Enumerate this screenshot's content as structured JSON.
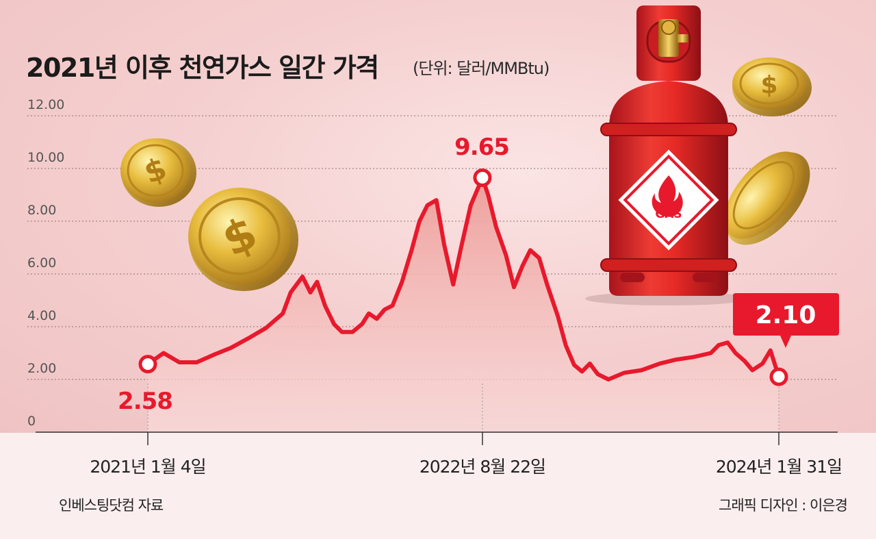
{
  "title": "2021년 이후 천연가스 일간 가격",
  "unit": "(단위: 달러/MMBtu)",
  "source": "인베스팅닷컴 자료",
  "credit": "그래픽 디자인 : 이은경",
  "illustration": {
    "cylinder_label": "GAS",
    "icons": [
      "gas-cylinder-icon",
      "gold-dollar-coin-icon"
    ]
  },
  "colors": {
    "line": "#e8192c",
    "label": "#e8192c",
    "area_top": "#ee9c98",
    "area_bottom": "#f8dcdb",
    "badge": "#e8192c"
  },
  "chart_data": {
    "type": "line",
    "title": "2021년 이후 천연가스 일간 가격",
    "ylabel": "",
    "xlabel": "",
    "ylim": [
      0,
      12
    ],
    "yticks": [
      "0",
      "2.00",
      "4.00",
      "6.00",
      "8.00",
      "10.00",
      "12.00"
    ],
    "grid": true,
    "x_labels": [
      {
        "date": "2021-01-04",
        "label": "2021년 1월 4일"
      },
      {
        "date": "2022-08-22",
        "label": "2022년 8월 22일"
      },
      {
        "date": "2024-01-31",
        "label": "2024년 1월 31일"
      }
    ],
    "annotations": [
      {
        "date": "2021-01-04",
        "value": 2.58,
        "label": "2.58"
      },
      {
        "date": "2022-08-22",
        "value": 9.65,
        "label": "9.65"
      },
      {
        "date": "2024-01-31",
        "value": 2.1,
        "label": "2.10"
      }
    ],
    "series": [
      {
        "dates": [
          "2021-01-04",
          "2021-02-01",
          "2021-03-01",
          "2021-04-01",
          "2021-05-03",
          "2021-06-01",
          "2021-07-01",
          "2021-08-02",
          "2021-09-01",
          "2021-09-15",
          "2021-10-06",
          "2021-10-20",
          "2021-11-01",
          "2021-11-15",
          "2021-12-01",
          "2021-12-15",
          "2022-01-03",
          "2022-01-20",
          "2022-02-01",
          "2022-02-15",
          "2022-03-01",
          "2022-03-15",
          "2022-04-01",
          "2022-04-18",
          "2022-05-02",
          "2022-05-16",
          "2022-06-01",
          "2022-06-15",
          "2022-07-01",
          "2022-07-15",
          "2022-08-01",
          "2022-08-22",
          "2022-09-01",
          "2022-09-15",
          "2022-10-03",
          "2022-10-17",
          "2022-11-01",
          "2022-11-15",
          "2022-12-01",
          "2022-12-15",
          "2023-01-03",
          "2023-01-17",
          "2023-02-01",
          "2023-02-15",
          "2023-03-01",
          "2023-03-15",
          "2023-04-03",
          "2023-05-01",
          "2023-06-01",
          "2023-07-03",
          "2023-08-01",
          "2023-09-01",
          "2023-10-02",
          "2023-10-16",
          "2023-11-01",
          "2023-11-15",
          "2023-12-01",
          "2023-12-15",
          "2024-01-02",
          "2024-01-16",
          "2024-01-31"
        ],
        "values": [
          2.58,
          3.0,
          2.65,
          2.65,
          2.95,
          3.2,
          3.55,
          3.95,
          4.5,
          5.3,
          5.9,
          5.3,
          5.7,
          4.8,
          4.1,
          3.8,
          3.8,
          4.1,
          4.5,
          4.3,
          4.65,
          4.8,
          5.7,
          6.9,
          8.0,
          8.6,
          8.8,
          7.1,
          5.6,
          7.0,
          8.6,
          9.65,
          9.0,
          7.8,
          6.7,
          5.5,
          6.3,
          6.9,
          6.6,
          5.6,
          4.4,
          3.3,
          2.55,
          2.3,
          2.6,
          2.2,
          2.0,
          2.25,
          2.35,
          2.6,
          2.75,
          2.85,
          3.0,
          3.3,
          3.4,
          3.0,
          2.7,
          2.35,
          2.6,
          3.1,
          2.1
        ]
      }
    ]
  }
}
